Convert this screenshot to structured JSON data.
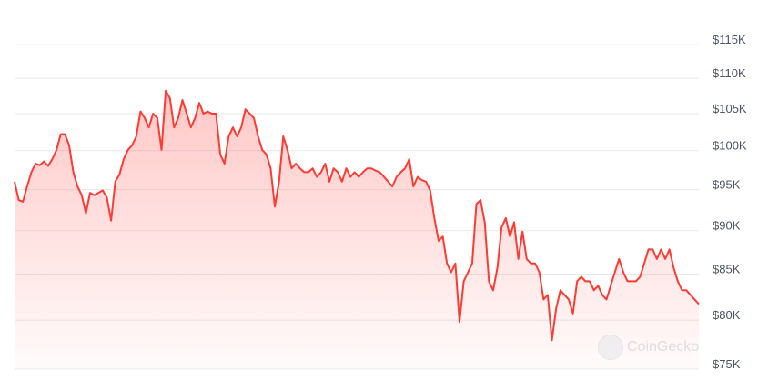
{
  "chart_data": {
    "type": "area",
    "title": "",
    "xlabel": "",
    "ylabel": "",
    "y_scale": "log",
    "ylim": [
      75000,
      115000
    ],
    "grid": true,
    "line_color": "#ff3a33",
    "fill_color": "#ff3a33",
    "y_ticks": [
      {
        "value": 115000,
        "label": "$115K"
      },
      {
        "value": 110000,
        "label": "$110K"
      },
      {
        "value": 105000,
        "label": "$105K"
      },
      {
        "value": 100000,
        "label": "$100K"
      },
      {
        "value": 95000,
        "label": "$95K"
      },
      {
        "value": 90000,
        "label": "$90K"
      },
      {
        "value": 85000,
        "label": "$85K"
      },
      {
        "value": 80000,
        "label": "$80K"
      },
      {
        "value": 75000,
        "label": "$75K"
      }
    ],
    "series": [
      {
        "values": [
          96000,
          93700,
          93500,
          95400,
          97200,
          98300,
          98100,
          98600,
          98000,
          98900,
          100100,
          102200,
          102200,
          100700,
          97200,
          95400,
          94300,
          92100,
          94600,
          94300,
          94600,
          94900,
          94000,
          91200,
          96000,
          96900,
          98900,
          100100,
          100700,
          101900,
          105300,
          104400,
          103100,
          105000,
          104400,
          100100,
          108200,
          107200,
          103100,
          104400,
          106900,
          105000,
          103100,
          104400,
          106500,
          105000,
          105300,
          105000,
          105000,
          99500,
          98300,
          101900,
          103100,
          101900,
          103100,
          105600,
          105000,
          104400,
          101900,
          100100,
          99500,
          97700,
          92900,
          96000,
          101900,
          100100,
          97700,
          98300,
          97700,
          97200,
          97200,
          97700,
          96600,
          97200,
          98300,
          96000,
          97700,
          97200,
          96000,
          97700,
          96600,
          97200,
          96600,
          97200,
          97700,
          97700,
          97400,
          97200,
          96600,
          96000,
          95400,
          96600,
          97200,
          97700,
          98900,
          95400,
          96600,
          96200,
          96000,
          94900,
          91500,
          88800,
          89300,
          86200,
          85200,
          86200,
          79800,
          84200,
          85200,
          86200,
          93200,
          93700,
          91000,
          84200,
          83200,
          85700,
          90400,
          91500,
          89300,
          91000,
          86700,
          89900,
          86700,
          86200,
          86200,
          85200,
          82200,
          82700,
          77900,
          81200,
          83200,
          82700,
          82200,
          80700,
          84200,
          84700,
          84200,
          84200,
          83200,
          83700,
          82700,
          82200,
          83700,
          85200,
          86700,
          85200,
          84200,
          84200,
          84200,
          84700,
          86200,
          87800,
          87800,
          86700,
          87800,
          86700,
          87800,
          85700,
          84200,
          83200,
          83200,
          82700,
          82200,
          81700
        ]
      }
    ]
  },
  "watermark": {
    "text": "CoinGecko",
    "icon": "gecko-logo-icon"
  }
}
